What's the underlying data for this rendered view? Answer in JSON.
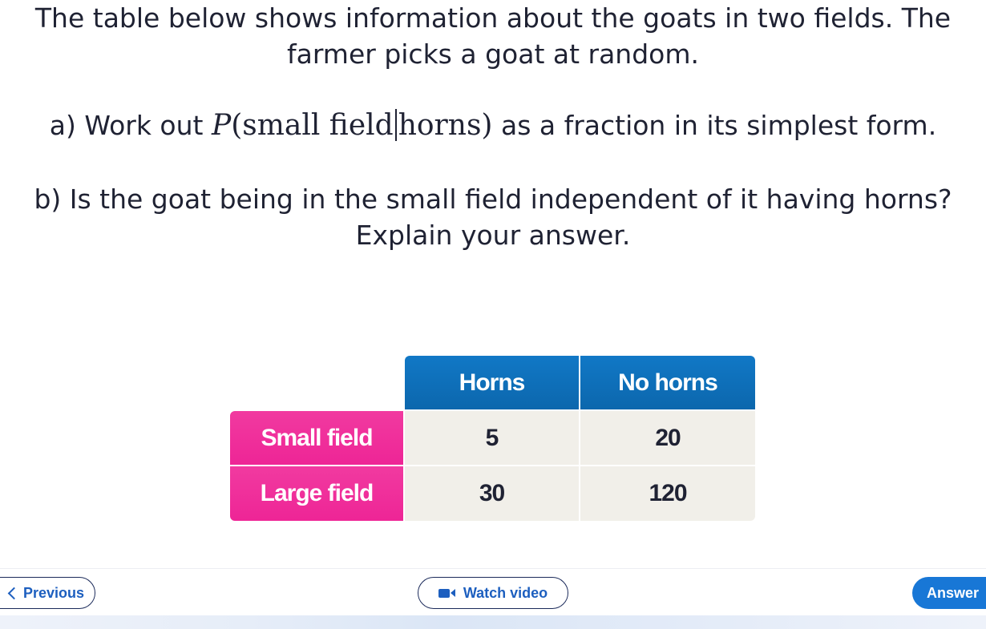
{
  "question": {
    "intro_line1": "The table below shows information about the goats in two fields. The",
    "intro_line2": "farmer picks a goat at random.",
    "part_a_prefix": "a) Work out",
    "part_a_math_p": "P",
    "part_a_math_given": "(small field",
    "part_a_math_cond": "horns)",
    "part_a_suffix": "as a fraction in its simplest form.",
    "part_b_line1": "b) Is the goat being in the small field independent of it having horns?",
    "part_b_line2": "Explain your answer."
  },
  "table": {
    "columns": [
      "Horns",
      "No horns"
    ],
    "rows": [
      {
        "label": "Small field",
        "values": [
          "5",
          "20"
        ]
      },
      {
        "label": "Large field",
        "values": [
          "30",
          "120"
        ]
      }
    ]
  },
  "footer": {
    "previous_label": "Previous",
    "watch_video_label": "Watch video",
    "answer_label": "Answer"
  },
  "colors": {
    "header_blue": "#0c67ad",
    "row_pink": "#ee2596",
    "cell_bg": "#f1efe9",
    "answer_button": "#1877d6",
    "link_blue": "#1d5fbf"
  },
  "icons": {
    "previous": "chevron-left-icon",
    "video": "video-camera-icon"
  }
}
